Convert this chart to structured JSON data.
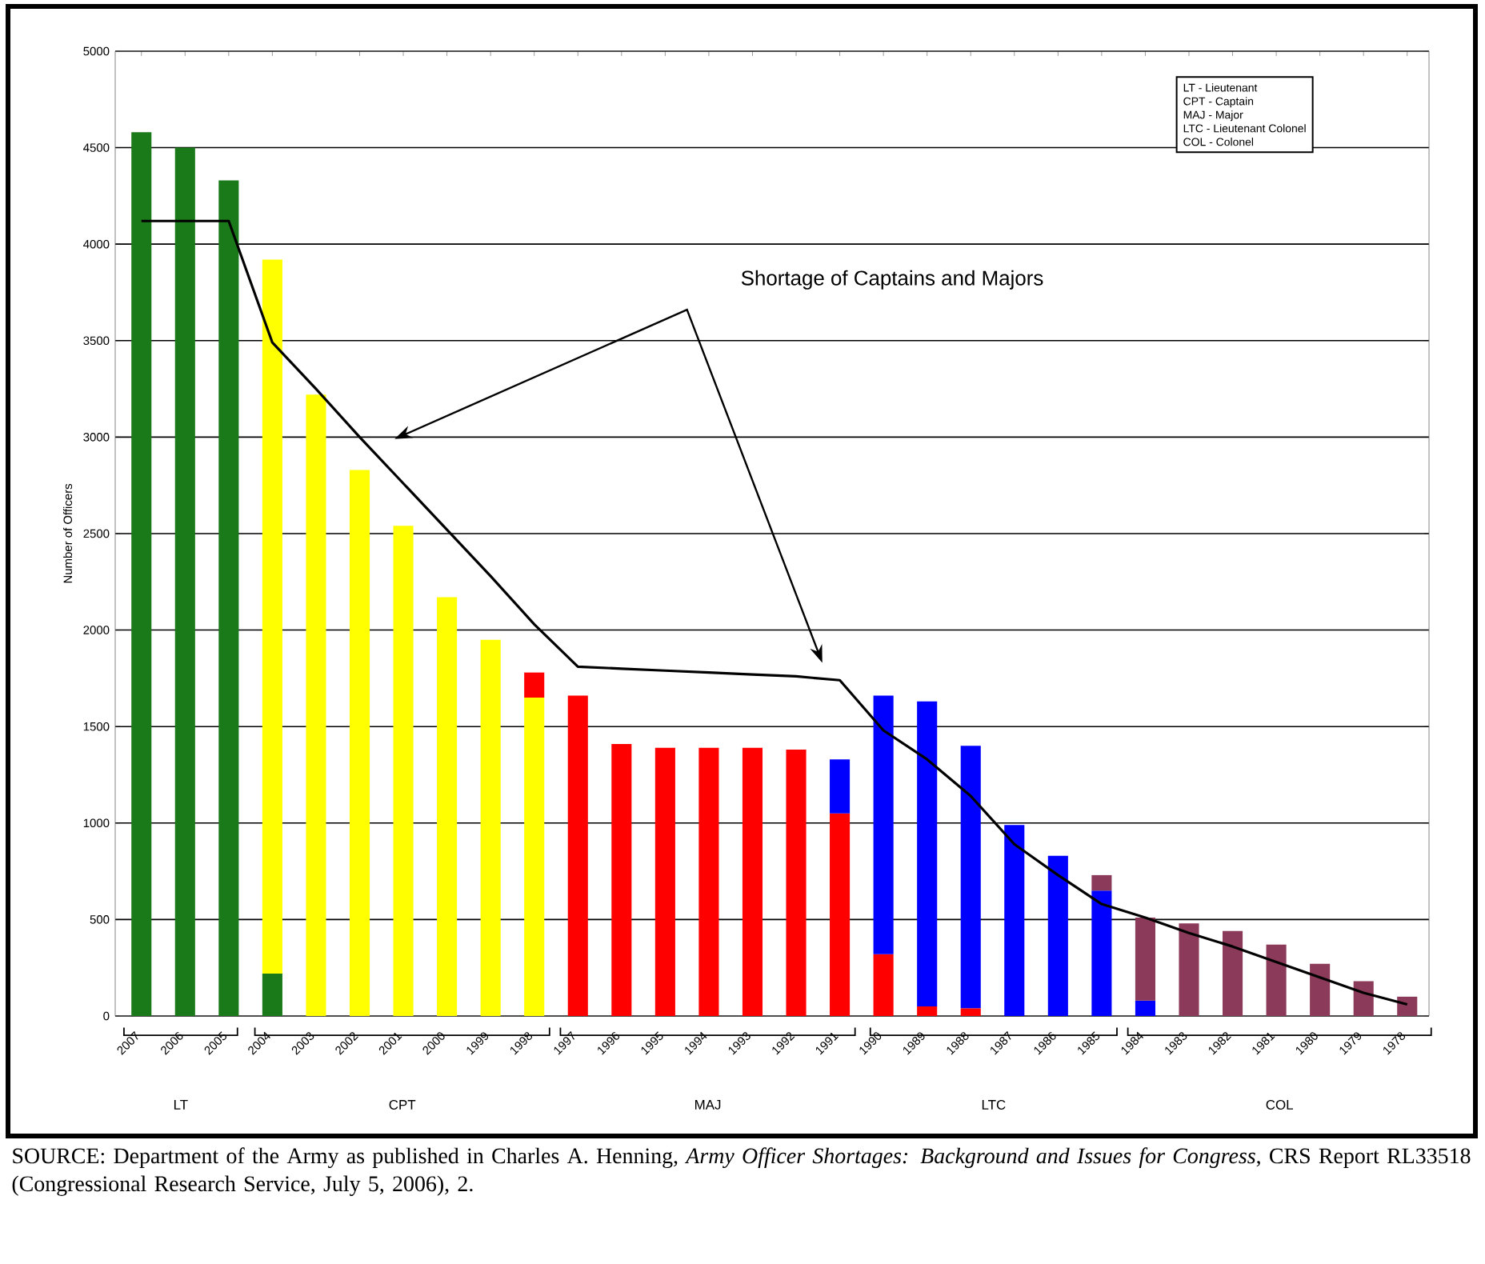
{
  "chart_data": {
    "type": "bar",
    "stacked": true,
    "ylabel": "Number of Officers",
    "categories": [
      "2007",
      "2006",
      "2005",
      "2004",
      "2003",
      "2002",
      "2001",
      "2000",
      "1999",
      "1998",
      "1997",
      "1996",
      "1995",
      "1994",
      "1993",
      "1992",
      "1991",
      "1990",
      "1989",
      "1988",
      "1987",
      "1986",
      "1985",
      "1984",
      "1983",
      "1982",
      "1981",
      "1980",
      "1979",
      "1978"
    ],
    "series": [
      {
        "color": "#1a7a1a",
        "values": [
          4580,
          4500,
          4330,
          220,
          null,
          null,
          null,
          null,
          null,
          null,
          null,
          null,
          null,
          null,
          null,
          null,
          null,
          null,
          null,
          null,
          null,
          null,
          null,
          null,
          null,
          null,
          null,
          null,
          null,
          null
        ]
      },
      {
        "color": "#ffff00",
        "values": [
          null,
          null,
          null,
          3700,
          3220,
          2830,
          2540,
          2170,
          1950,
          1650,
          null,
          null,
          null,
          null,
          null,
          null,
          null,
          null,
          null,
          null,
          null,
          null,
          null,
          null,
          null,
          null,
          null,
          null,
          null,
          null
        ]
      },
      {
        "color": "#ff0000",
        "values": [
          null,
          null,
          null,
          null,
          null,
          null,
          null,
          null,
          null,
          130,
          1660,
          1410,
          1390,
          1390,
          1390,
          1380,
          1050,
          320,
          50,
          40,
          null,
          null,
          null,
          null,
          null,
          null,
          null,
          null,
          null,
          null
        ]
      },
      {
        "color": "#0000ff",
        "values": [
          null,
          null,
          null,
          null,
          null,
          null,
          null,
          null,
          null,
          null,
          null,
          null,
          null,
          null,
          null,
          null,
          280,
          1340,
          1580,
          1360,
          990,
          830,
          650,
          80,
          null,
          null,
          null,
          null,
          null,
          null
        ]
      },
      {
        "color": "#8b3a5a",
        "values": [
          null,
          null,
          null,
          null,
          null,
          null,
          null,
          null,
          null,
          null,
          null,
          null,
          null,
          null,
          null,
          null,
          null,
          null,
          null,
          null,
          null,
          null,
          80,
          430,
          480,
          440,
          370,
          270,
          180,
          100
        ]
      },
      {
        "type": "line",
        "color": "#000000",
        "values": [
          4120,
          4120,
          4120,
          3490,
          3250,
          3000,
          2760,
          2520,
          2280,
          2030,
          1810,
          1800,
          1790,
          1780,
          1770,
          1760,
          1740,
          1480,
          1330,
          1140,
          890,
          730,
          580,
          510,
          430,
          360,
          280,
          200,
          120,
          60
        ]
      }
    ],
    "ylim": [
      0,
      5000
    ],
    "yticks": [
      0,
      500,
      1000,
      1500,
      2000,
      2500,
      3000,
      3500,
      4000,
      4500,
      5000
    ],
    "grid": "y",
    "annotations": [
      "Shortage of  Captains and Majors",
      "LT - Lieutenant",
      "CPT - Captain",
      "MAJ - Major",
      "LTC - Lieutenant Colonel",
      "COL - Colonel",
      "LT",
      "CPT",
      "MAJ",
      "LTC",
      "COL",
      "SOURCE: Department of the Army as published in Charles A. Henning, *Army Officer Shortages: Background and Issues for Congress*, CRS Report RL33518 (Congressional Research Service, July 5, 2006), 2."
    ]
  }
}
